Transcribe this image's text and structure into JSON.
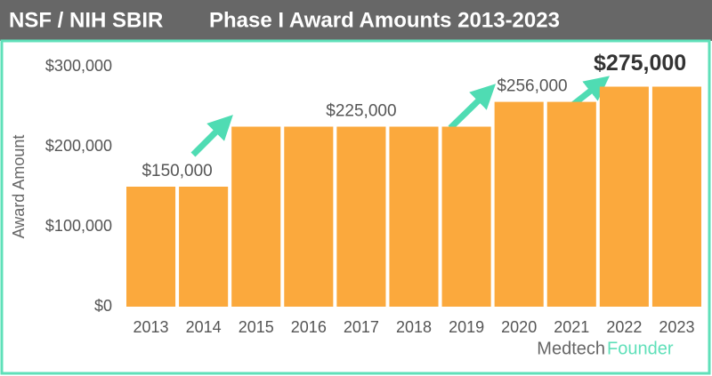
{
  "chart_data": {
    "type": "bar",
    "title": "NSF / NIH SBIR",
    "subtitle": "Phase I Award Amounts 2013-2023",
    "y_label": "Award Amount",
    "categories": [
      "2013",
      "2014",
      "2015",
      "2016",
      "2017",
      "2018",
      "2019",
      "2020",
      "2021",
      "2022",
      "2023"
    ],
    "values": [
      150000,
      150000,
      225000,
      225000,
      225000,
      225000,
      225000,
      256000,
      256000,
      275000,
      275000
    ],
    "value_labels": [
      "$150,000",
      null,
      null,
      null,
      "$225,000",
      null,
      null,
      "$256,000",
      null,
      "$275,000",
      null
    ],
    "color": "#fba93d",
    "ylim": [
      0,
      300000
    ],
    "yticks": [
      {
        "value": 0,
        "label": "$0"
      },
      {
        "value": 100000,
        "label": "$100,000"
      },
      {
        "value": 200000,
        "label": "$200,000"
      },
      {
        "value": 300000,
        "label": "$300,000"
      }
    ],
    "grid": false,
    "credit": [
      "Medtech",
      "Founder"
    ]
  }
}
